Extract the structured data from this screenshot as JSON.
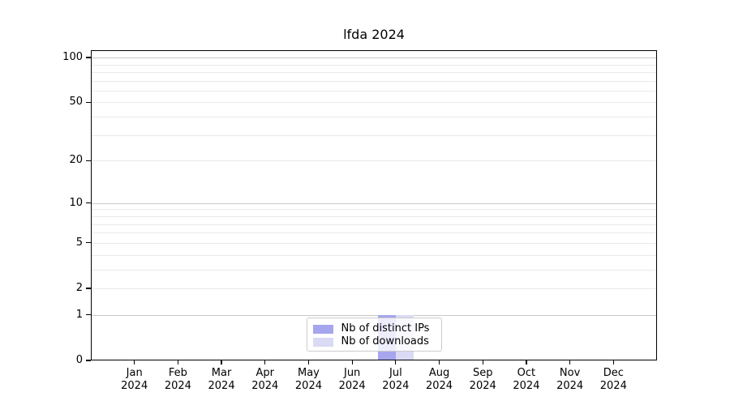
{
  "chart_data": {
    "type": "bar",
    "title": "lfda 2024",
    "categories": [
      "Jan",
      "Feb",
      "Mar",
      "Apr",
      "May",
      "Jun",
      "Jul",
      "Aug",
      "Sep",
      "Oct",
      "Nov",
      "Dec"
    ],
    "year_label": "2024",
    "series": [
      {
        "name": "Nb of distinct IPs",
        "color": "#a6a6ee",
        "values": [
          0,
          0,
          0,
          0,
          0,
          0,
          1,
          0,
          0,
          0,
          0,
          0
        ]
      },
      {
        "name": "Nb of downloads",
        "color": "#dadaf5",
        "values": [
          0,
          0,
          0,
          0,
          0,
          0,
          1,
          0,
          0,
          0,
          0,
          0
        ]
      }
    ],
    "xlabel": "",
    "ylabel": "",
    "yscale": "log1p",
    "ylim": [
      0,
      112
    ],
    "y_ticks": [
      0,
      1,
      2,
      5,
      10,
      20,
      50,
      100
    ],
    "grid": "on",
    "grid_major": [
      1,
      10,
      100
    ],
    "grid_minor": [
      2,
      3,
      4,
      5,
      6,
      7,
      8,
      9,
      20,
      30,
      40,
      50,
      60,
      70,
      80,
      90
    ],
    "grid_major_color": "#c8c8c8",
    "grid_minor_color": "#e9e9e9",
    "legend_position": "lower center"
  }
}
